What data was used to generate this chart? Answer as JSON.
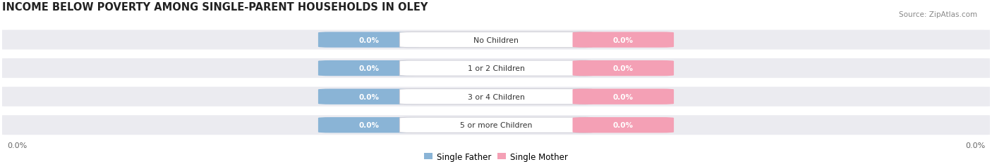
{
  "title": "INCOME BELOW POVERTY AMONG SINGLE-PARENT HOUSEHOLDS IN OLEY",
  "source": "Source: ZipAtlas.com",
  "categories": [
    "No Children",
    "1 or 2 Children",
    "3 or 4 Children",
    "5 or more Children"
  ],
  "father_values": [
    0.0,
    0.0,
    0.0,
    0.0
  ],
  "mother_values": [
    0.0,
    0.0,
    0.0,
    0.0
  ],
  "father_color": "#8ab4d6",
  "mother_color": "#f4a0b5",
  "background_color": "#ffffff",
  "row_bg_color": "#ebebf0",
  "title_fontsize": 10.5,
  "axis_label_left": "0.0%",
  "axis_label_right": "0.0%",
  "legend_labels": [
    "Single Father",
    "Single Mother"
  ]
}
